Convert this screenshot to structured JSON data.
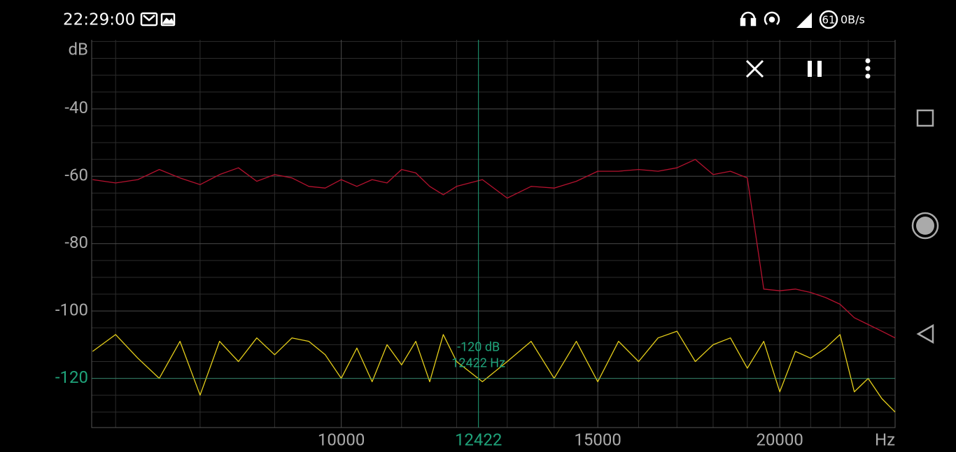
{
  "status_bar": {
    "time": "22:29:00",
    "battery": "61",
    "net_speed": "0B/s"
  },
  "chart_data": {
    "type": "line",
    "y_label": "dB",
    "x_label": "Hz",
    "x_scale": "log",
    "xlim": [
      6740,
      24000
    ],
    "xticks": [
      10000,
      15000,
      20000
    ],
    "xminor_ticks": [
      7000,
      8000,
      9000,
      11000,
      12000,
      13000,
      14000,
      16000,
      17000,
      18000,
      19000,
      21000,
      22000,
      23000
    ],
    "ylim": [
      -134.6,
      -19.5
    ],
    "yticks": [
      -40,
      -60,
      -80,
      -100,
      -120
    ],
    "yminor_ticks": [
      -20,
      -25,
      -30,
      -35,
      -45,
      -50,
      -55,
      -65,
      -70,
      -75,
      -85,
      -90,
      -95,
      -105,
      -110,
      -115,
      -125,
      -130
    ],
    "grid": true,
    "x": [
      6750,
      7000,
      7250,
      7500,
      7750,
      8000,
      8250,
      8500,
      8750,
      9000,
      9250,
      9500,
      9750,
      10000,
      10250,
      10500,
      10750,
      11000,
      11250,
      11500,
      11750,
      12000,
      12500,
      13000,
      13500,
      14000,
      14500,
      15000,
      15500,
      16000,
      16500,
      17000,
      17500,
      18000,
      18500,
      19000,
      19500,
      20000,
      20500,
      21000,
      21500,
      22000,
      22500,
      23000,
      23500,
      24000
    ],
    "series": [
      {
        "color": "#b5122f",
        "values": [
          -61,
          -62,
          -61,
          -58,
          -60.5,
          -62.5,
          -59.5,
          -57.5,
          -61.5,
          -59.5,
          -60.5,
          -63,
          -63.5,
          -61,
          -63,
          -61,
          -62,
          -58,
          -59,
          -63,
          -65.5,
          -63,
          -61,
          -66.5,
          -63,
          -63.5,
          -61.5,
          -58.5,
          -58.5,
          -58,
          -58.5,
          -57.5,
          -55,
          -59.5,
          -58.5,
          -60.5,
          -93.5,
          -94,
          -93.5,
          -94.5,
          -96,
          -98,
          -102,
          -104,
          -106,
          -108
        ]
      },
      {
        "color": "#e6cf1a",
        "values": [
          -112,
          -107,
          -114,
          -120,
          -109,
          -125,
          -109,
          -115,
          -108,
          -113,
          -108,
          -109,
          -113,
          -120,
          -111,
          -121,
          -110,
          -116,
          -109,
          -121,
          -107,
          -115,
          -121,
          -115,
          -109,
          -120,
          -109,
          -121,
          -109,
          -115,
          -108,
          -106,
          -115,
          -110,
          -108,
          -117,
          -109,
          -124,
          -112,
          -114,
          -111,
          -107,
          -124,
          -120,
          -126,
          -130
        ]
      }
    ],
    "cursor": {
      "x": 12422,
      "y": -120,
      "label_db": "-120 dB",
      "label_hz": "12422 Hz",
      "color": "#1fa37a"
    }
  }
}
